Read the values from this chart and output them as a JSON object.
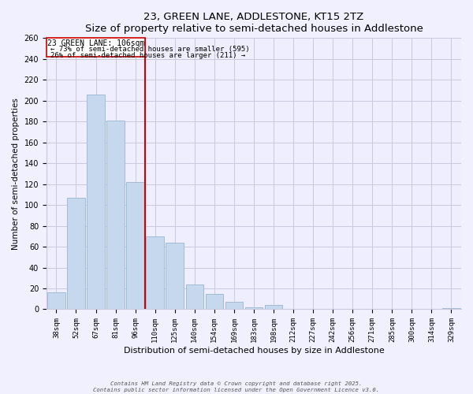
{
  "title": "23, GREEN LANE, ADDLESTONE, KT15 2TZ",
  "subtitle": "Size of property relative to semi-detached houses in Addlestone",
  "xlabel": "Distribution of semi-detached houses by size in Addlestone",
  "ylabel": "Number of semi-detached properties",
  "bin_labels": [
    "38sqm",
    "52sqm",
    "67sqm",
    "81sqm",
    "96sqm",
    "110sqm",
    "125sqm",
    "140sqm",
    "154sqm",
    "169sqm",
    "183sqm",
    "198sqm",
    "212sqm",
    "227sqm",
    "242sqm",
    "256sqm",
    "271sqm",
    "285sqm",
    "300sqm",
    "314sqm",
    "329sqm"
  ],
  "bar_values": [
    16,
    107,
    206,
    181,
    122,
    70,
    64,
    24,
    15,
    7,
    2,
    4,
    0,
    0,
    0,
    0,
    0,
    0,
    0,
    0,
    1
  ],
  "bar_color": "#c5d8ed",
  "bar_edge_color": "#a0bcd8",
  "vline_color": "#cc0000",
  "annotation_title": "23 GREEN LANE: 106sqm",
  "annotation_line1": "← 73% of semi-detached houses are smaller (595)",
  "annotation_line2": "26% of semi-detached houses are larger (211) →",
  "annotation_box_color": "white",
  "annotation_box_edge": "#cc0000",
  "ylim": [
    0,
    260
  ],
  "yticks": [
    0,
    20,
    40,
    60,
    80,
    100,
    120,
    140,
    160,
    180,
    200,
    220,
    240,
    260
  ],
  "footer_line1": "Contains HM Land Registry data © Crown copyright and database right 2025.",
  "footer_line2": "Contains public sector information licensed under the Open Government Licence v3.0.",
  "bg_color": "#f0f0ff",
  "plot_bg_color": "#eeeeff",
  "grid_color": "#c8c8e0"
}
